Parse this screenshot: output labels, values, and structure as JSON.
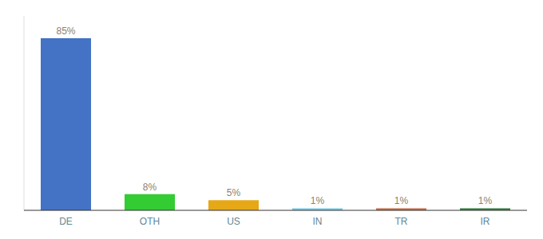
{
  "chart_data": {
    "type": "bar",
    "categories": [
      "DE",
      "OTH",
      "US",
      "IN",
      "TR",
      "IR"
    ],
    "values": [
      85,
      8,
      5,
      1,
      1,
      1
    ],
    "value_labels": [
      "85%",
      "8%",
      "5%",
      "1%",
      "1%",
      "1%"
    ],
    "data_labels": true,
    "colors": [
      "#4472c4",
      "#33cc33",
      "#e6a817",
      "#7ec8e3",
      "#c0724a",
      "#3a7d44"
    ],
    "ylim": [
      0,
      96
    ],
    "grid": false,
    "tick_labels": "x"
  }
}
